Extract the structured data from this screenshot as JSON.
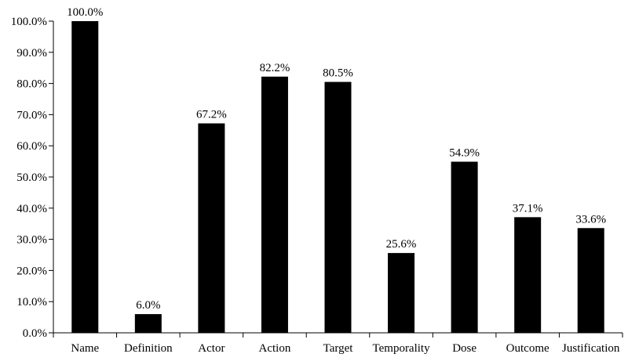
{
  "chart_data": {
    "type": "bar",
    "title": "",
    "xlabel": "",
    "ylabel": "",
    "categories": [
      "Name",
      "Definition",
      "Actor",
      "Action",
      "Target",
      "Temporality",
      "Dose",
      "Outcome",
      "Justification"
    ],
    "values": [
      100.0,
      6.0,
      67.2,
      82.2,
      80.5,
      25.6,
      54.9,
      37.1,
      33.6
    ],
    "data_labels": [
      "100.0%",
      "6.0%",
      "67.2%",
      "82.2%",
      "80.5%",
      "25.6%",
      "54.9%",
      "37.1%",
      "33.6%"
    ],
    "ylim": [
      0,
      100
    ],
    "yticks": [
      0,
      10,
      20,
      30,
      40,
      50,
      60,
      70,
      80,
      90,
      100
    ],
    "ytick_labels": [
      "0.0%",
      "10.0%",
      "20.0%",
      "30.0%",
      "40.0%",
      "50.0%",
      "60.0%",
      "70.0%",
      "80.0%",
      "90.0%",
      "100.0%"
    ],
    "grid": false,
    "legend": "none",
    "bar_color": "#000000"
  }
}
